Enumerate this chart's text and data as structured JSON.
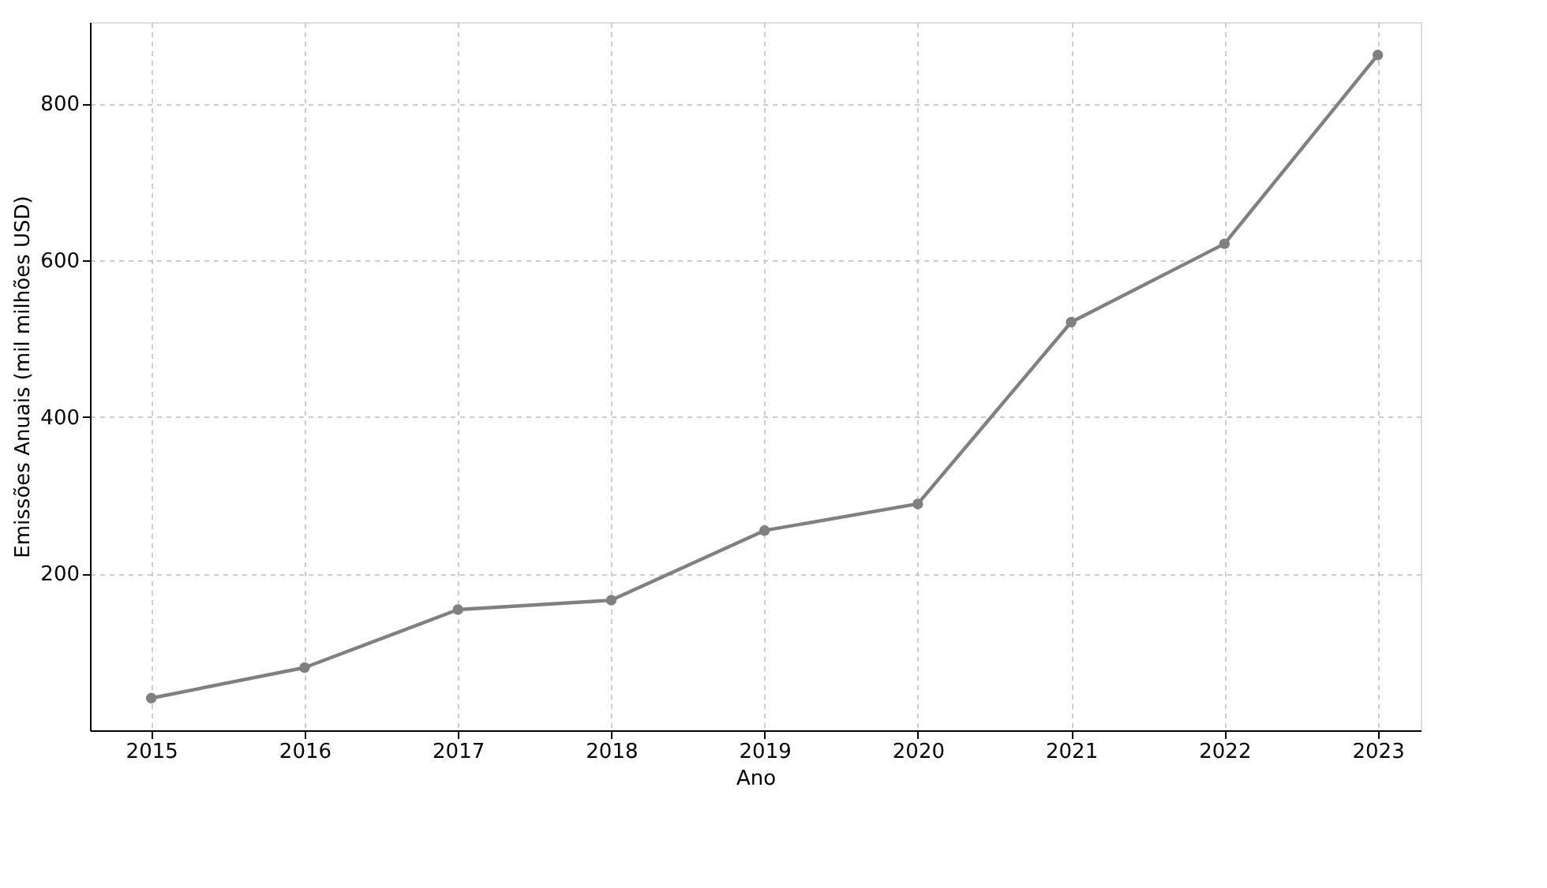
{
  "chart_data": {
    "type": "line",
    "xlabel": "Ano",
    "ylabel": "Emissões Anuais (mil milhões USD)",
    "x": [
      2015,
      2016,
      2017,
      2018,
      2019,
      2020,
      2021,
      2022,
      2023
    ],
    "series": [
      {
        "color": "#808080",
        "values": [
          41,
          80,
          154,
          166,
          255,
          289,
          521,
          621,
          862
        ]
      }
    ],
    "xlim": [
      2014.6,
      2023.28
    ],
    "xticks": [
      2015,
      2016,
      2017,
      2018,
      2019,
      2020,
      2021,
      2022,
      2023
    ],
    "ylim": [
      0,
      904
    ],
    "yticks": [
      200,
      400,
      600,
      800
    ],
    "grid": true,
    "marker": "circle",
    "line_style": "solid"
  }
}
